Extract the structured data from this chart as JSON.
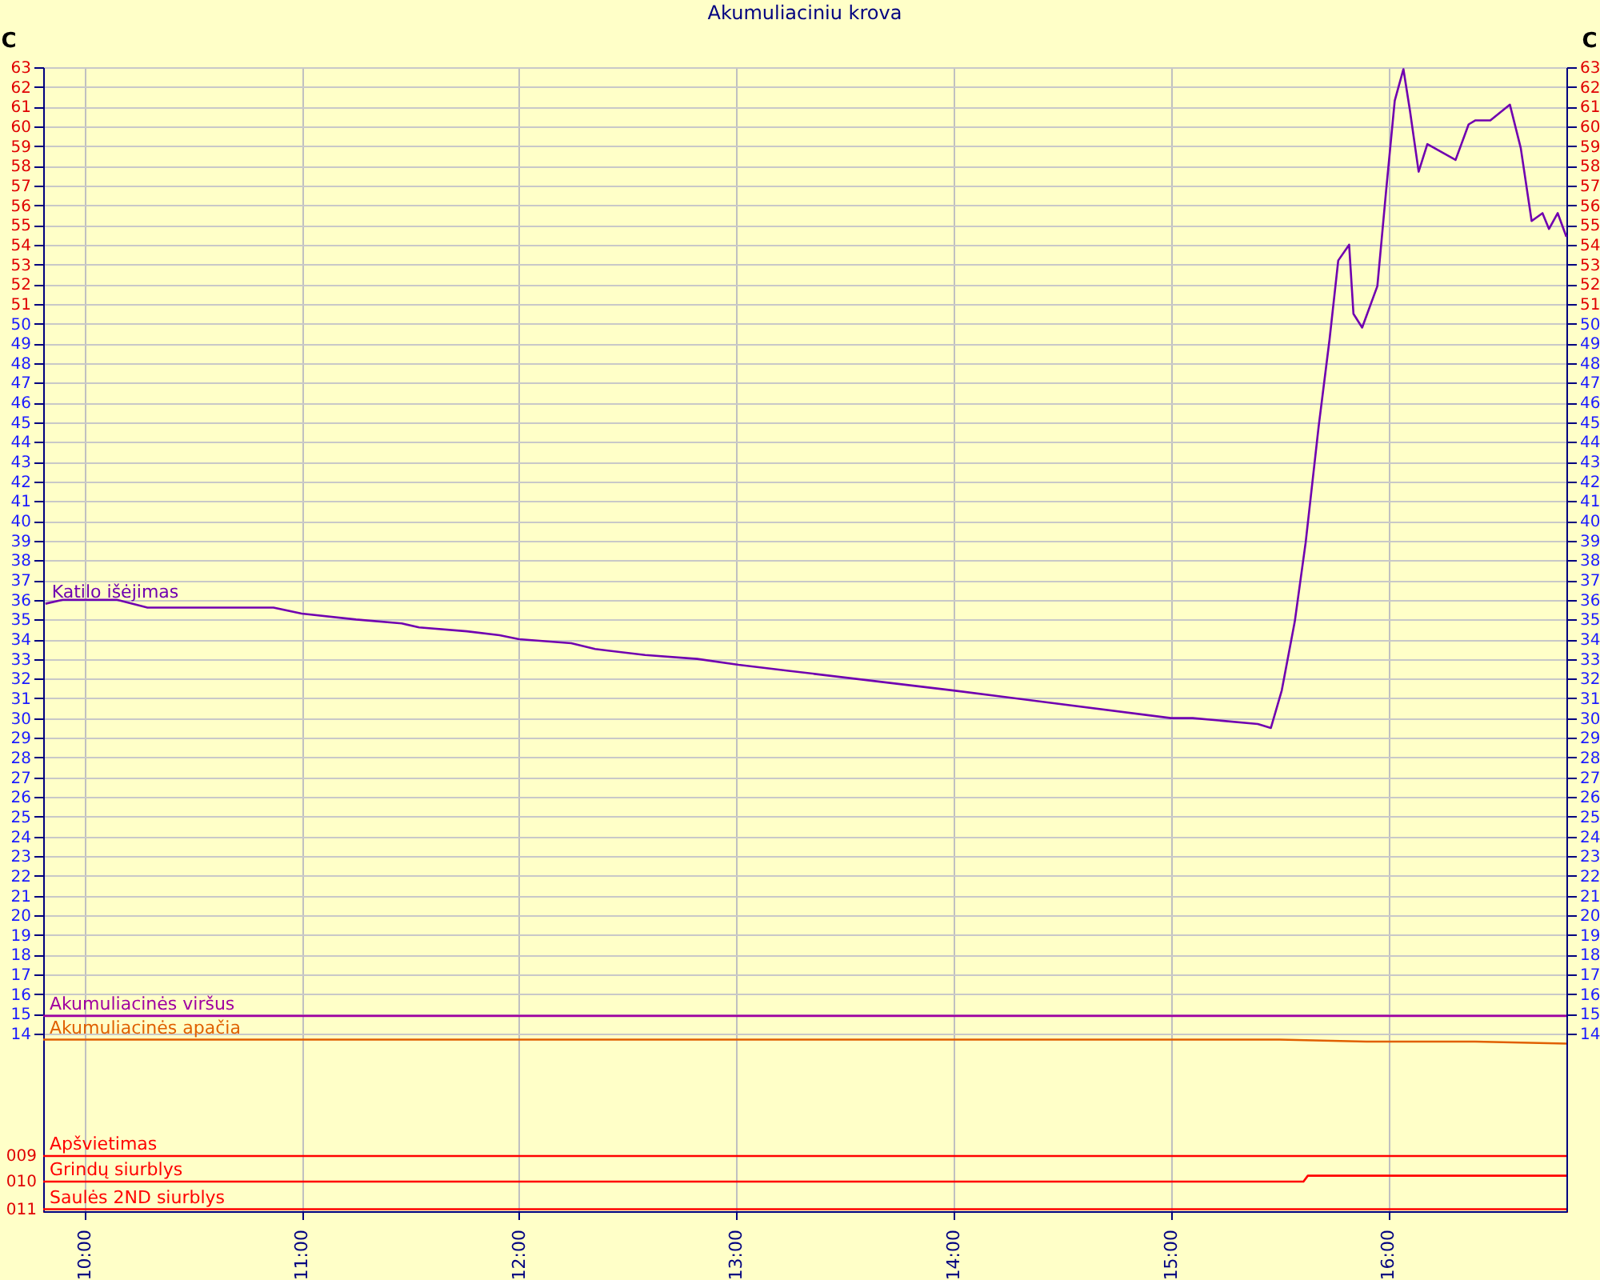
{
  "chart_data": {
    "type": "line",
    "title": "Akumuliaciniu krova",
    "ylabel": "C",
    "y2label": "C",
    "xlim": [
      9.81,
      16.82
    ],
    "xticks": [
      {
        "value": 10,
        "label": "10:00"
      },
      {
        "value": 11,
        "label": "11:00"
      },
      {
        "value": 12,
        "label": "12:00"
      },
      {
        "value": 13,
        "label": "13:00"
      },
      {
        "value": 14,
        "label": "14:00"
      },
      {
        "value": 15,
        "label": "15:00"
      },
      {
        "value": 16,
        "label": "16:00"
      }
    ],
    "ylim": [
      5,
      63
    ],
    "annotations": [
      "009",
      "010",
      "011"
    ],
    "yticks": [
      14,
      15,
      16,
      17,
      18,
      19,
      20,
      21,
      22,
      23,
      24,
      25,
      26,
      27,
      28,
      29,
      30,
      31,
      32,
      33,
      34,
      35,
      36,
      37,
      38,
      39,
      40,
      41,
      42,
      43,
      44,
      45,
      46,
      47,
      48,
      49,
      50,
      51,
      52,
      53,
      54,
      55,
      56,
      57,
      58,
      59,
      60,
      61,
      62,
      63
    ],
    "y2lim": [
      5,
      63
    ],
    "y2ticks": [
      14,
      15,
      16,
      17,
      18,
      19,
      20,
      21,
      22,
      23,
      24,
      25,
      26,
      27,
      28,
      29,
      30,
      31,
      32,
      33,
      34,
      35,
      36,
      37,
      38,
      39,
      40,
      41,
      42,
      43,
      44,
      45,
      46,
      47,
      48,
      49,
      50,
      51,
      52,
      53,
      54,
      55,
      56,
      57,
      58,
      59,
      60,
      61,
      62,
      63
    ],
    "grid": true,
    "legend": false,
    "series": [
      {
        "name": "Katilo išėjimas",
        "color": "#7000b0",
        "x": [
          9.82,
          9.9,
          10.15,
          10.29,
          10.87,
          11.0,
          11.25,
          11.46,
          11.54,
          11.76,
          11.91,
          12.0,
          12.24,
          12.35,
          12.58,
          12.82,
          13.01,
          13.24,
          14.0,
          15.0,
          15.1,
          15.4,
          15.46,
          15.51,
          15.57,
          15.62,
          15.68,
          15.73,
          15.77,
          15.82,
          15.84,
          15.88,
          15.95,
          15.99,
          16.03,
          16.07,
          16.1,
          16.14,
          16.18,
          16.31,
          16.37,
          16.4,
          16.47,
          16.56,
          16.61,
          16.66,
          16.71,
          16.74,
          16.78,
          16.82
        ],
        "values": [
          35.8,
          36.0,
          36.0,
          35.6,
          35.6,
          35.3,
          35.0,
          34.8,
          34.6,
          34.4,
          34.2,
          34.0,
          33.8,
          33.5,
          33.2,
          33.0,
          32.7,
          32.4,
          31.4,
          30.0,
          30.0,
          29.7,
          29.5,
          31.4,
          34.9,
          38.9,
          44.8,
          49.2,
          53.2,
          54.0,
          50.5,
          49.8,
          51.9,
          56.7,
          61.3,
          62.9,
          60.8,
          57.7,
          59.1,
          58.3,
          60.1,
          60.3,
          60.3,
          61.1,
          58.9,
          55.2,
          55.6,
          54.8,
          55.6,
          54.4
        ]
      },
      {
        "name": "Akumuliacinės viršus",
        "color": "#a000a0",
        "x": [
          9.81,
          16.82
        ],
        "values": [
          14.9,
          14.9
        ]
      },
      {
        "name": "Akumuliacinės apačia",
        "color": "#e06000",
        "x": [
          9.81,
          15.5,
          15.9,
          16.4,
          16.82
        ],
        "values": [
          13.7,
          13.7,
          13.6,
          13.6,
          13.5
        ]
      },
      {
        "name": "Apšvietimas",
        "color": "#ff0000",
        "x": [
          9.81,
          16.82
        ],
        "values": [
          7.8,
          7.8
        ]
      },
      {
        "name": "Grindų siurblys",
        "color": "#ff0000",
        "x": [
          9.81,
          15.61,
          15.63,
          16.82
        ],
        "values": [
          6.5,
          6.5,
          6.8,
          6.8
        ]
      },
      {
        "name": "Saulės 2ND siurblys",
        "color": "#ff0000",
        "x": [
          9.81,
          16.82
        ],
        "values": [
          5.1,
          5.1
        ]
      }
    ]
  }
}
